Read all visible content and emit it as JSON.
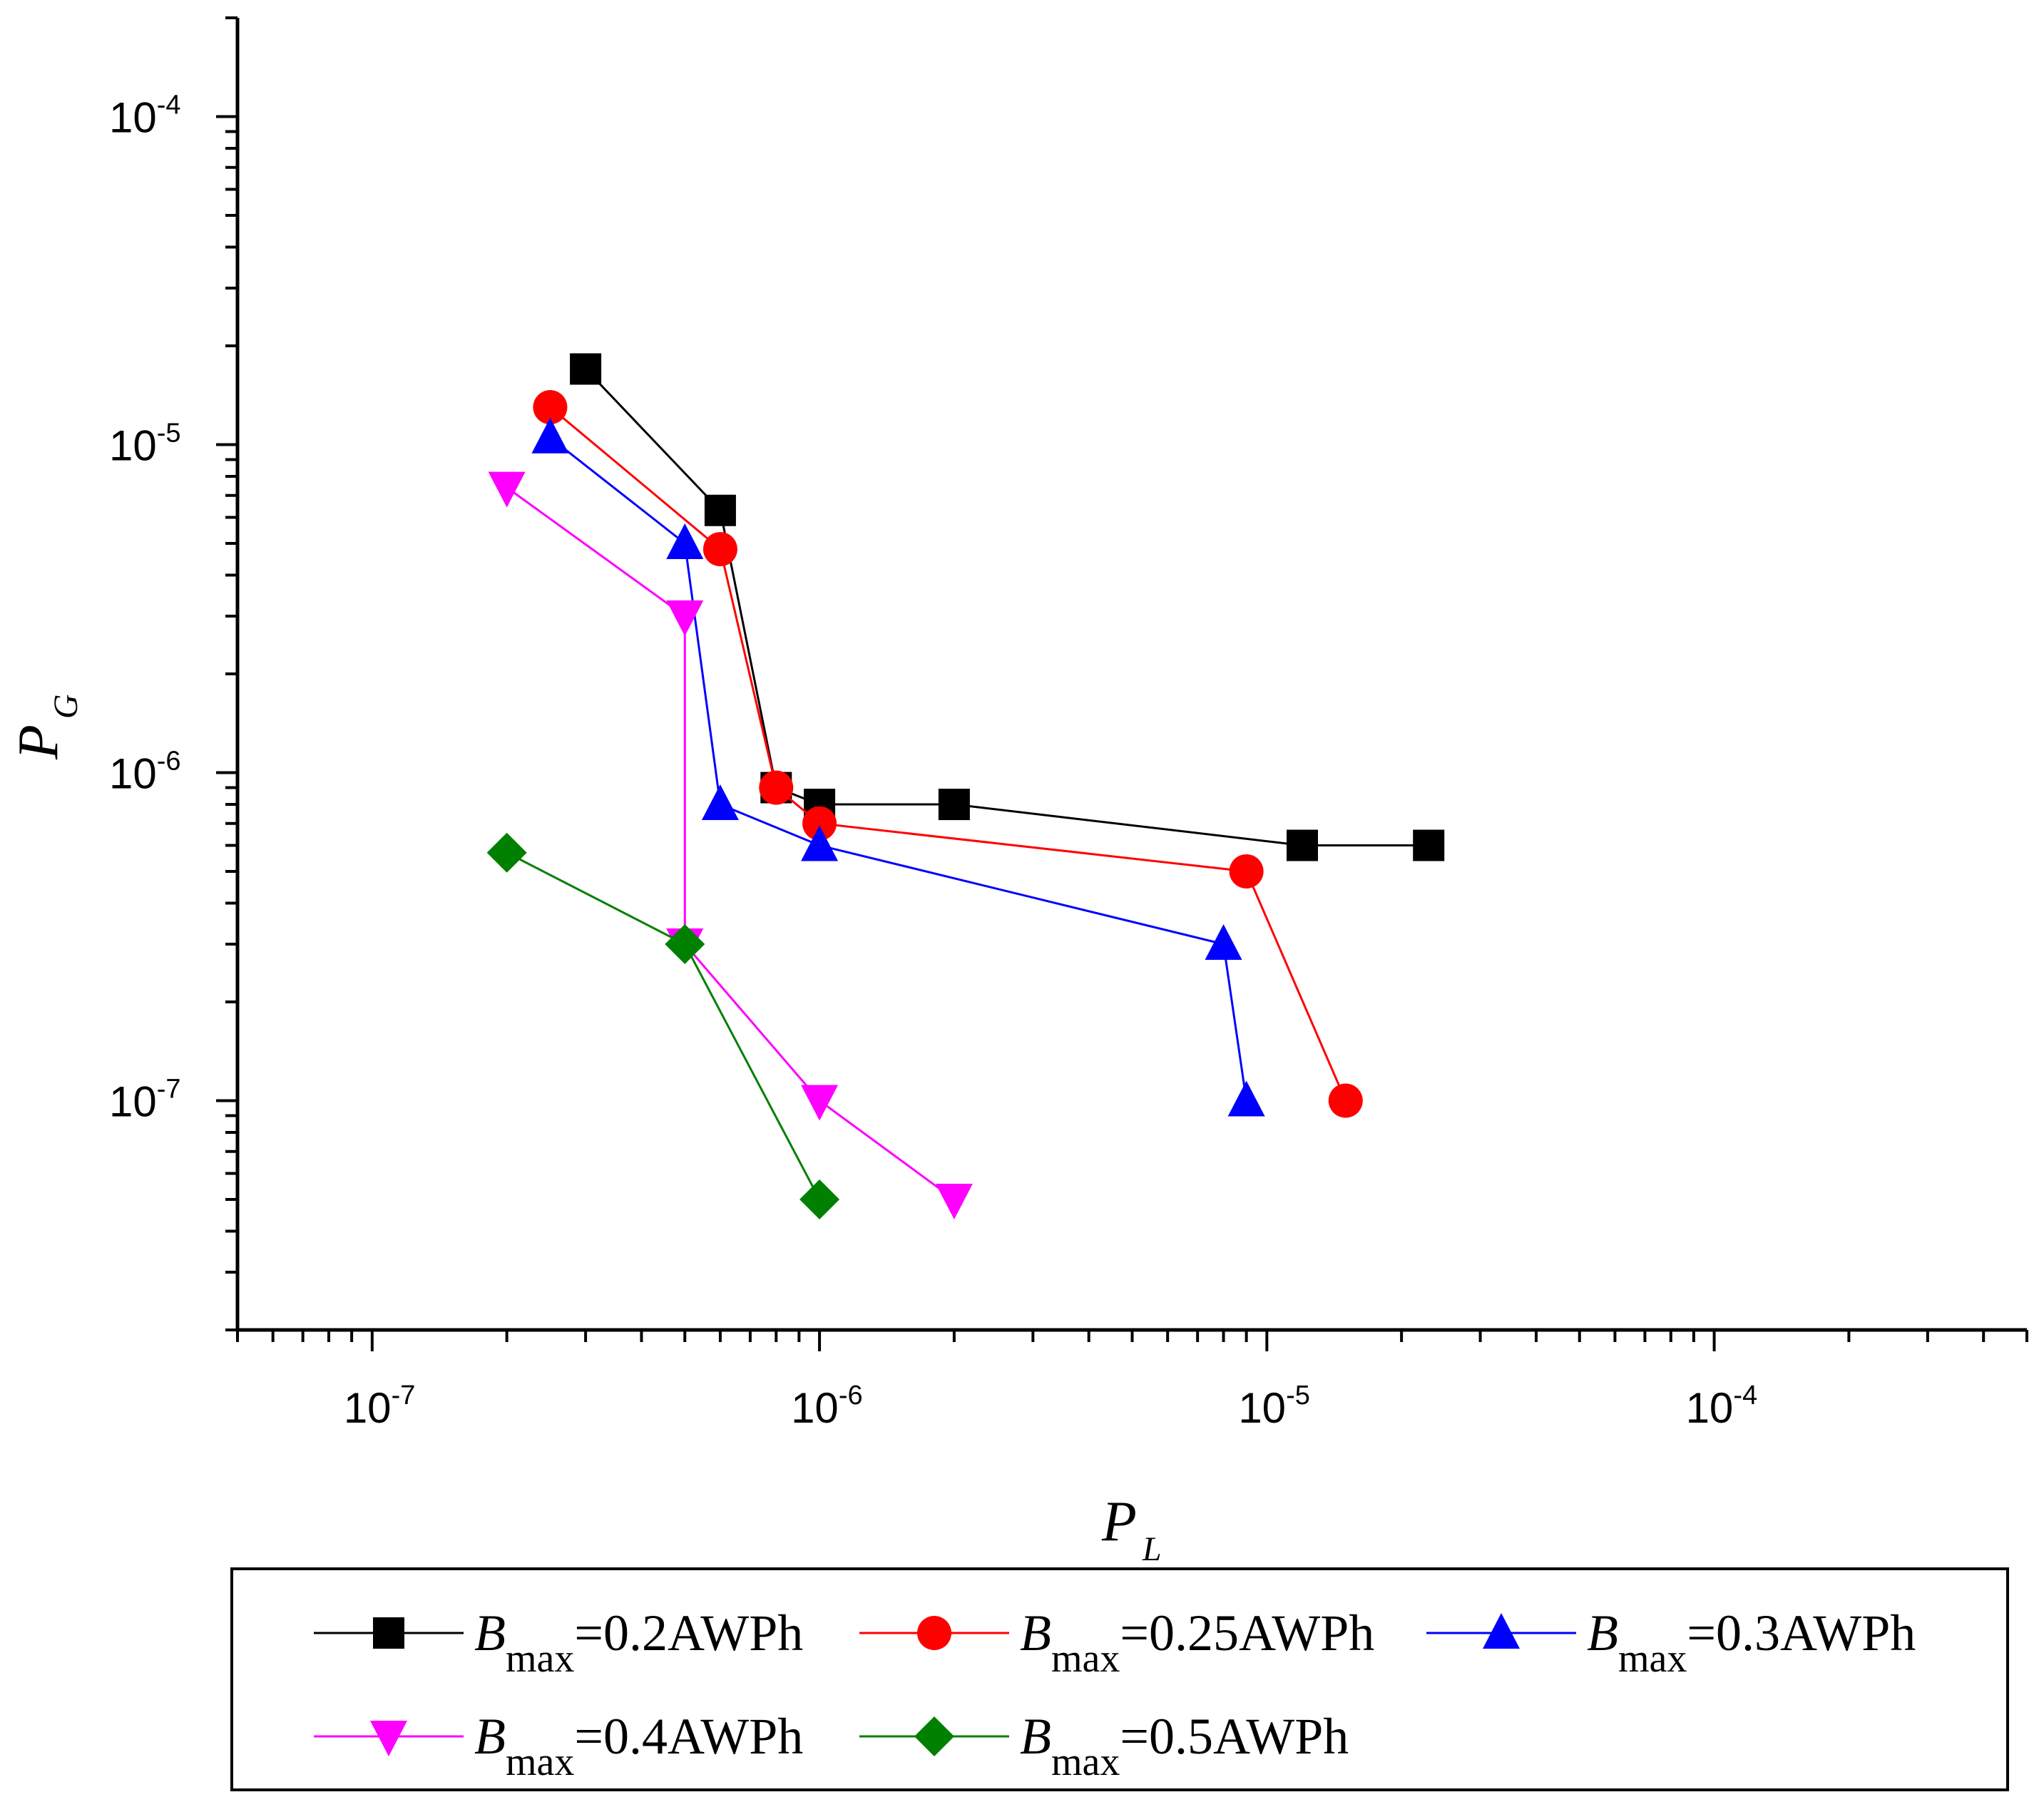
{
  "chart_data": {
    "type": "line",
    "title": "",
    "xlabel": {
      "main": "P",
      "sub": "L"
    },
    "ylabel": {
      "main": "P",
      "sub": "G"
    },
    "xscale": "log",
    "yscale": "log",
    "xlim": [
      5e-08,
      0.0005
    ],
    "ylim": [
      2e-08,
      0.0002
    ],
    "xticks": [
      {
        "value": 1e-07,
        "base": "10",
        "exp": "-7"
      },
      {
        "value": 1e-06,
        "base": "10",
        "exp": "-6"
      },
      {
        "value": 1e-05,
        "base": "10",
        "exp": "-5"
      },
      {
        "value": 0.0001,
        "base": "10",
        "exp": "-4"
      }
    ],
    "yticks": [
      {
        "value": 1e-07,
        "base": "10",
        "exp": "-7"
      },
      {
        "value": 1e-06,
        "base": "10",
        "exp": "-6"
      },
      {
        "value": 1e-05,
        "base": "10",
        "exp": "-5"
      },
      {
        "value": 0.0001,
        "base": "10",
        "exp": "-4"
      }
    ],
    "grid": false,
    "legend_position": "bottom",
    "series": [
      {
        "name": "Bmax=0.2AWPh",
        "label_main": "B",
        "label_sub": "max",
        "label_value": "=0.2AWPh",
        "color": "#000000",
        "marker": "square",
        "x": [
          3e-07,
          6e-07,
          8e-07,
          1e-06,
          2e-06,
          1.2e-05,
          2.3e-05
        ],
        "y": [
          1.7e-05,
          6.3e-06,
          9e-07,
          8e-07,
          8e-07,
          6e-07,
          6e-07
        ]
      },
      {
        "name": "Bmax=0.25AWPh",
        "label_main": "B",
        "label_sub": "max",
        "label_value": "=0.25AWPh",
        "color": "#ff0000",
        "marker": "circle",
        "x": [
          2.5e-07,
          6e-07,
          8e-07,
          1e-06,
          9e-06,
          1.5e-05
        ],
        "y": [
          1.3e-05,
          4.8e-06,
          9e-07,
          7e-07,
          5e-07,
          1e-07
        ]
      },
      {
        "name": "Bmax=0.3AWPh",
        "label_main": "B",
        "label_sub": "max",
        "label_value": "=0.3AWPh",
        "color": "#0000ff",
        "marker": "triangle-up",
        "x": [
          2.5e-07,
          5e-07,
          6e-07,
          1e-06,
          8e-06,
          9e-06
        ],
        "y": [
          1.05e-05,
          5e-06,
          8e-07,
          6e-07,
          3e-07,
          1e-07
        ]
      },
      {
        "name": "Bmax=0.4AWPh",
        "label_main": "B",
        "label_sub": "max",
        "label_value": "=0.4AWPh",
        "color": "#ff00ff",
        "marker": "triangle-down",
        "x": [
          2e-07,
          5e-07,
          5e-07,
          1e-06,
          2e-06
        ],
        "y": [
          7.4e-06,
          3e-06,
          3e-07,
          1e-07,
          5e-08
        ]
      },
      {
        "name": "Bmax=0.5AWPh",
        "label_main": "B",
        "label_sub": "max",
        "label_value": "=0.5AWPh",
        "color": "#008000",
        "marker": "diamond",
        "x": [
          2e-07,
          5e-07,
          1e-06
        ],
        "y": [
          5.7e-07,
          3e-07,
          5e-08
        ]
      }
    ]
  }
}
